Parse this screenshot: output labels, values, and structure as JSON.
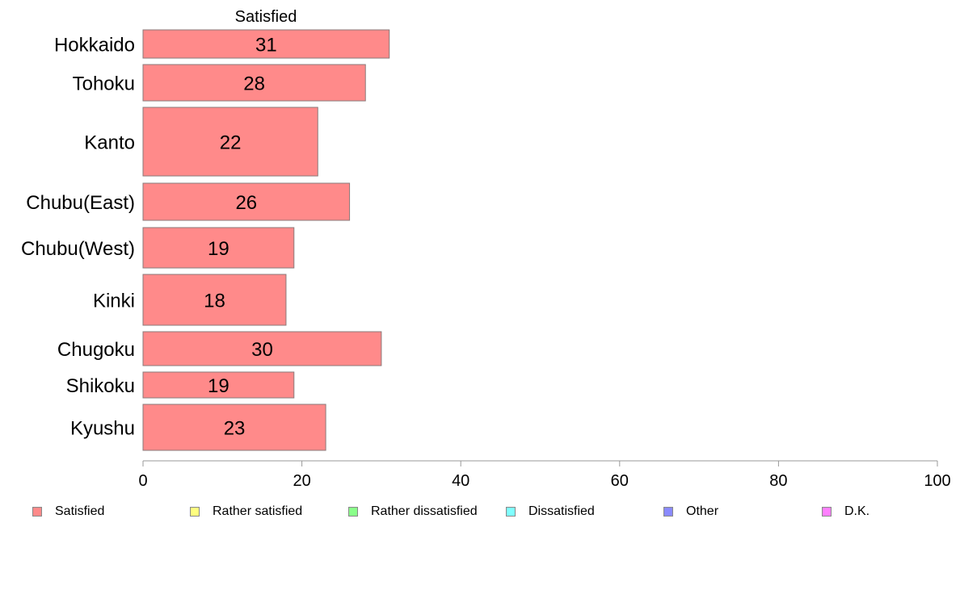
{
  "chart_data": {
    "type": "bar",
    "orientation": "horizontal",
    "stacked": true,
    "column_header": "Satisfied",
    "categories": [
      "Hokkaido",
      "Tohoku",
      "Kanto",
      "Chubu(East)",
      "Chubu(West)",
      "Kinki",
      "Chugoku",
      "Shikoku",
      "Kyushu"
    ],
    "series": [
      {
        "name": "Satisfied",
        "color": "#ff8a8a",
        "values": [
          31,
          28,
          22,
          26,
          19,
          18,
          30,
          19,
          23
        ]
      }
    ],
    "data_labels": [
      "31",
      "28",
      "22",
      "26",
      "19",
      "18",
      "30",
      "19",
      "23"
    ],
    "xlim": [
      0,
      100
    ],
    "xticks": [
      0,
      20,
      40,
      60,
      80,
      100
    ],
    "grid": false,
    "legend_position": "bottom"
  },
  "legend": [
    {
      "label": "Satisfied",
      "color": "#ff8a8a"
    },
    {
      "label": "Rather satisfied",
      "color": "#ffff80"
    },
    {
      "label": "Rather dissatisfied",
      "color": "#8aff8a"
    },
    {
      "label": "Dissatisfied",
      "color": "#80ffff"
    },
    {
      "label": "Other",
      "color": "#8a8aff"
    },
    {
      "label": "D.K.",
      "color": "#ff80ff"
    }
  ]
}
